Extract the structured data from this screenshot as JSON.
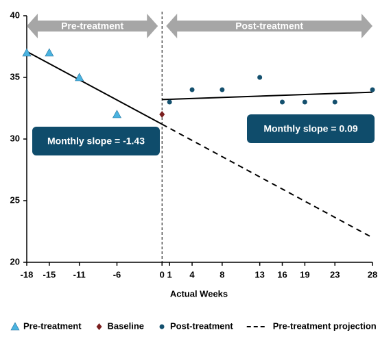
{
  "chart_data": {
    "type": "scatter",
    "x_label": "Actual Weeks",
    "xlim": [
      -18,
      28
    ],
    "ylim": [
      20,
      40
    ],
    "xticks": [
      -18,
      -15,
      -11,
      -6,
      0,
      1,
      4,
      8,
      13,
      16,
      19,
      23,
      28
    ],
    "yticks": [
      20,
      25,
      30,
      35,
      40
    ],
    "series": [
      {
        "name": "Pre-treatment",
        "color": "#4bb3e0",
        "marker": "triangle",
        "x": [
          -18,
          -15,
          -11,
          -6
        ],
        "values": [
          37,
          37,
          35,
          32
        ]
      },
      {
        "name": "Baseline",
        "color": "#7a1e1e",
        "marker": "diamond",
        "x": [
          0
        ],
        "values": [
          32
        ]
      },
      {
        "name": "Post-treatment",
        "color": "#14506e",
        "marker": "circle",
        "x": [
          1,
          4,
          8,
          13,
          16,
          19,
          23,
          28
        ],
        "values": [
          33,
          34,
          34,
          35,
          33,
          33,
          33,
          34
        ]
      }
    ],
    "lines": [
      {
        "x": [
          -18,
          0
        ],
        "values": [
          37.1,
          31.2
        ],
        "color": "#000000",
        "dashed": false
      },
      {
        "name": "Pre-treatment projection",
        "x": [
          0,
          28
        ],
        "values": [
          31.2,
          22
        ],
        "color": "#000000",
        "dashed": true
      },
      {
        "x": [
          0,
          28
        ],
        "values": [
          33.2,
          33.8
        ],
        "color": "#000000",
        "dashed": false
      }
    ],
    "periods": [
      {
        "label": "Pre-treatment",
        "x": [
          -18,
          0
        ]
      },
      {
        "label": "Post-treatment",
        "x": [
          0,
          28
        ]
      }
    ],
    "annotations": [
      "Monthly slope = -1.43",
      "Monthly slope = 0.09"
    ]
  }
}
